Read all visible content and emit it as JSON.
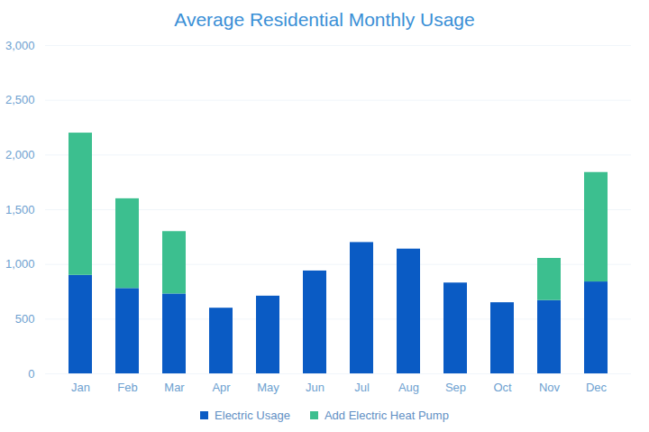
{
  "chart_data": {
    "type": "bar",
    "title": "Average Residential Monthly Usage",
    "categories": [
      "Jan",
      "Feb",
      "Mar",
      "Apr",
      "May",
      "Jun",
      "Jul",
      "Aug",
      "Sep",
      "Oct",
      "Nov",
      "Dec"
    ],
    "series": [
      {
        "name": "Electric Usage",
        "color": "#0a5bc4",
        "values": [
          900,
          780,
          730,
          600,
          710,
          940,
          1200,
          1140,
          830,
          650,
          670,
          840
        ]
      },
      {
        "name": "Add Electric Heat Pump",
        "color": "#3cbf8f",
        "values": [
          1300,
          820,
          570,
          null,
          null,
          null,
          null,
          null,
          null,
          null,
          385,
          1000
        ]
      }
    ],
    "stacked": true,
    "ylim": [
      0,
      3000
    ],
    "yticks": [
      0,
      500,
      1000,
      1500,
      2000,
      2500,
      3000
    ],
    "grid": true,
    "legend": "bottom"
  }
}
